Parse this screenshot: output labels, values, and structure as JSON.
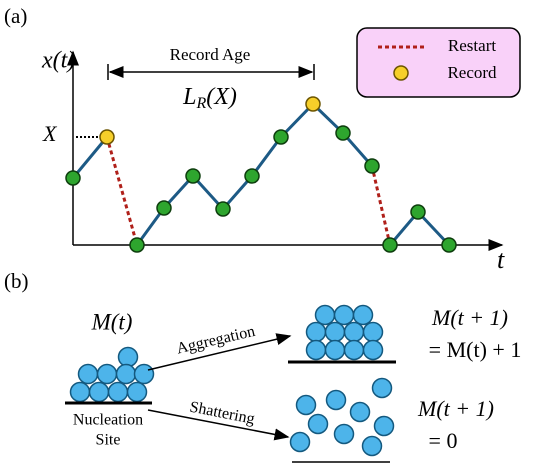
{
  "panel_a": {
    "label": "(a)",
    "y_axis_label": "x(t)",
    "x_axis_label": "t",
    "threshold_label": "X",
    "record_age": {
      "label": "Record Age",
      "symbol": {
        "main": "L",
        "sub": "R",
        "rest": "(X)"
      }
    },
    "legend": {
      "restart": "Restart",
      "record": "Record"
    }
  },
  "panel_b": {
    "label": "(b)",
    "initial": "M(t)",
    "aggregation": "Aggregation",
    "shattering": "Shattering",
    "site": {
      "line1": "Nucleation",
      "line2": "Site"
    },
    "aggregation_result": {
      "line1": "M(t + 1)",
      "line2": "= M(t) + 1"
    },
    "shattering_result": {
      "line1": "M(t + 1)",
      "line2": "= 0"
    }
  }
}
